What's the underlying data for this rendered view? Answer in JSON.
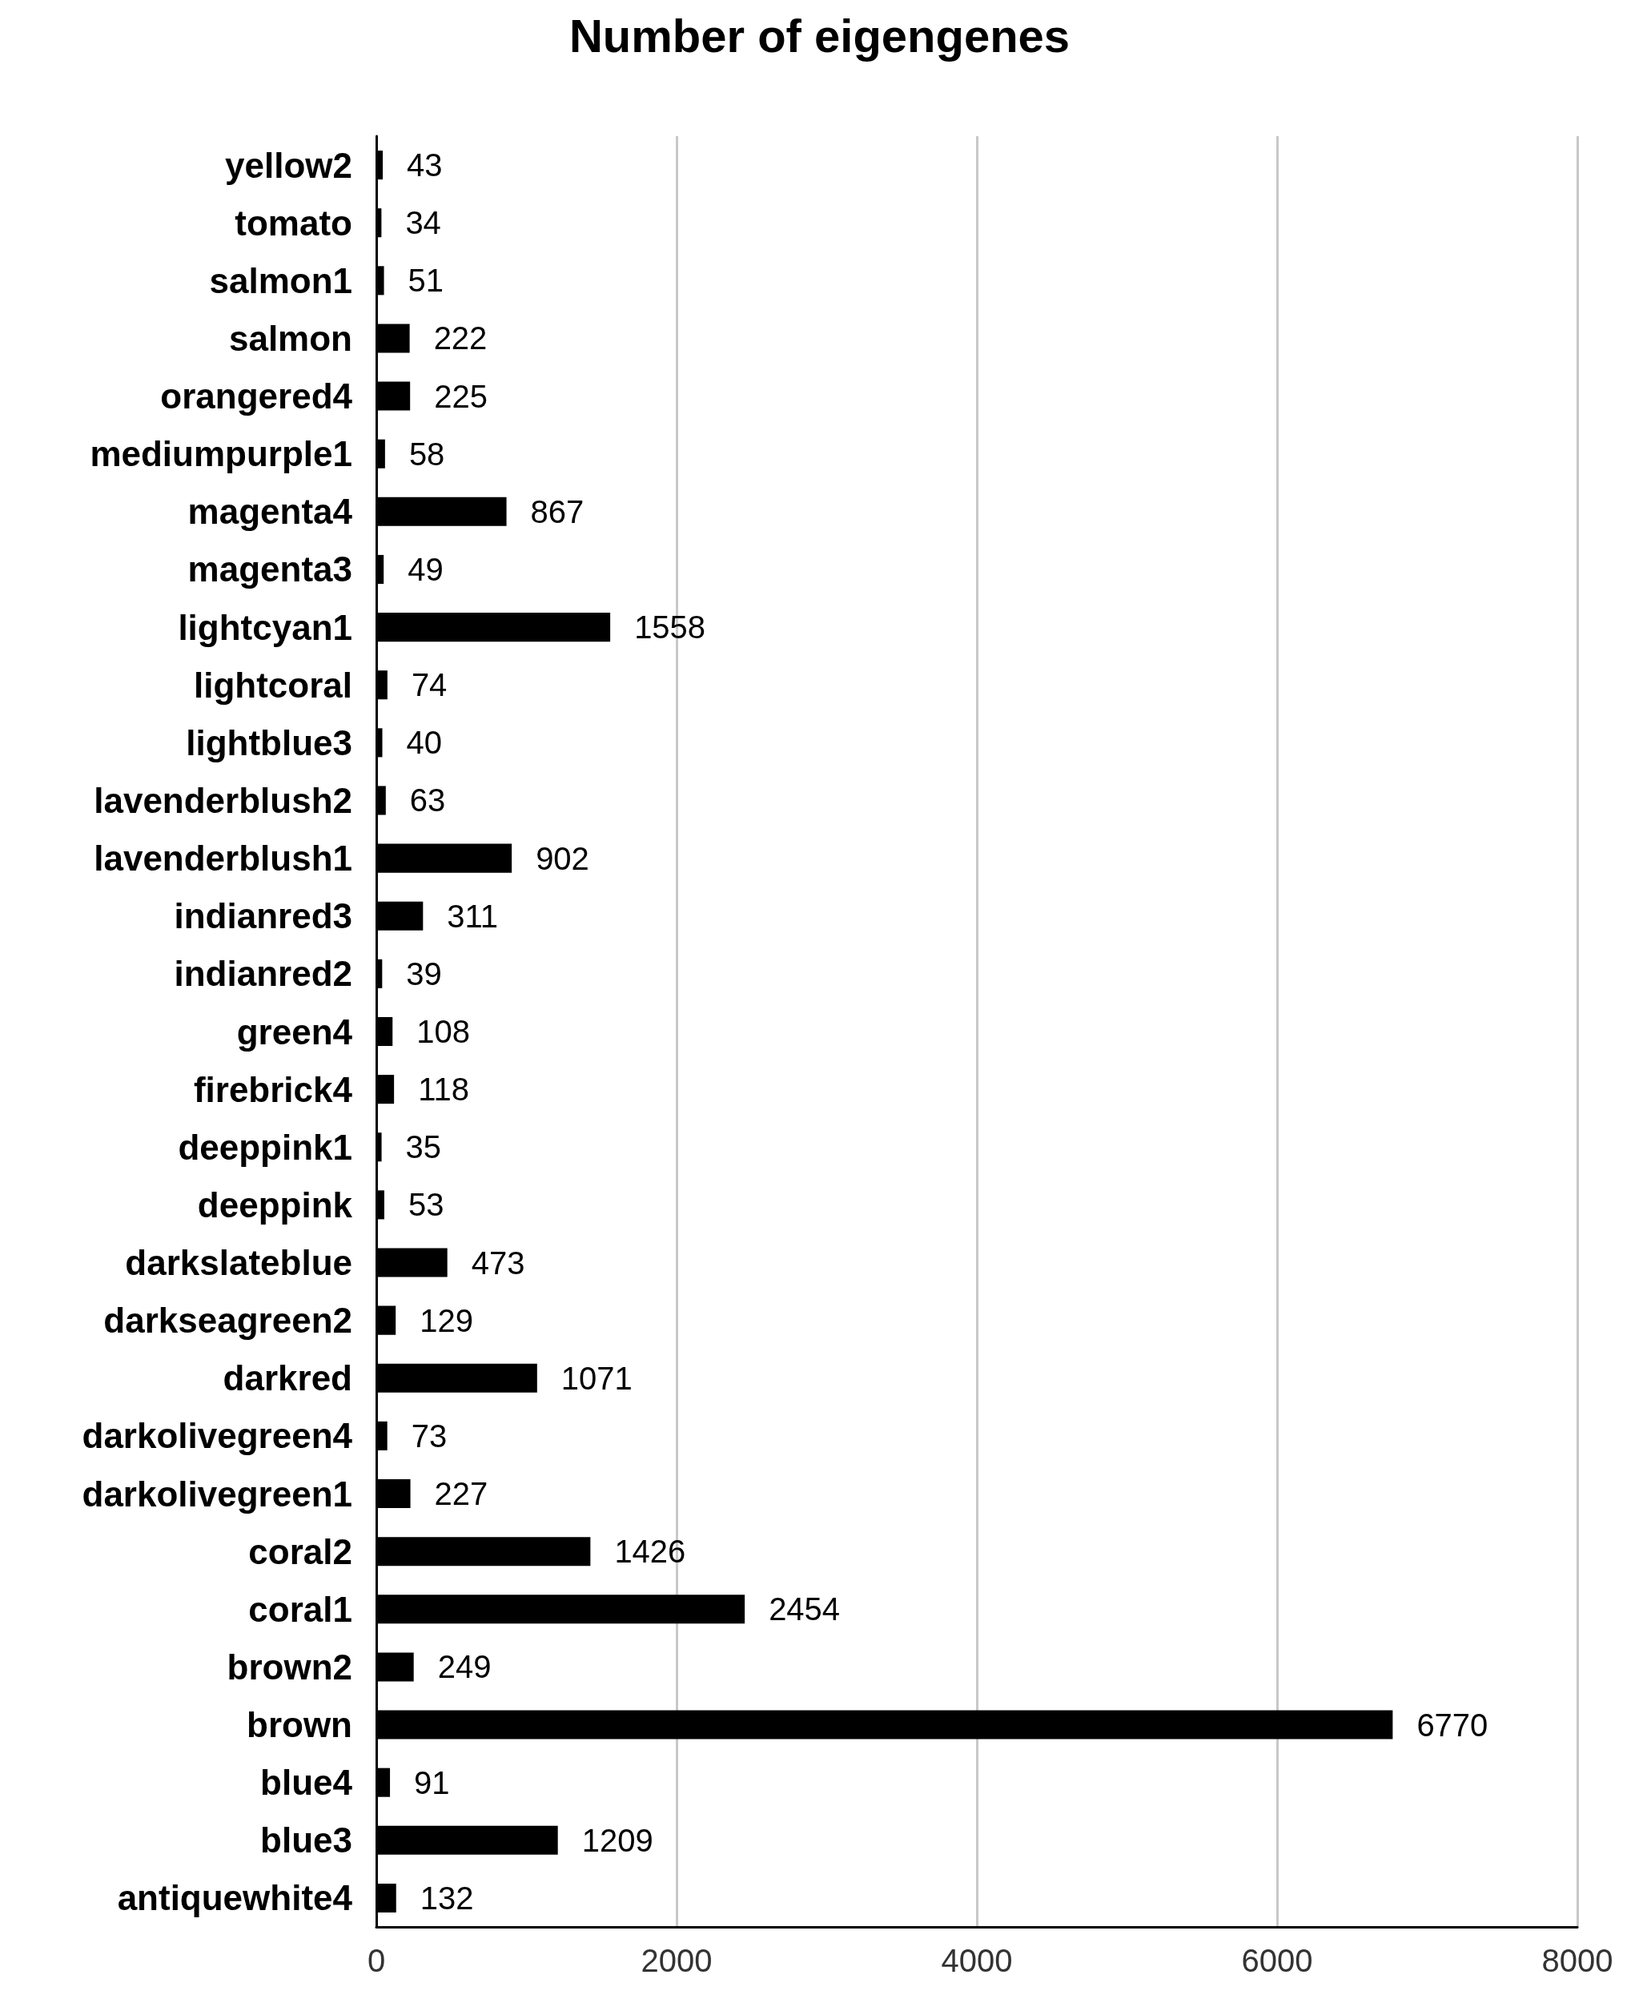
{
  "chart_data": {
    "type": "bar",
    "orientation": "horizontal",
    "title": "Number of eigengenes",
    "categories": [
      "yellow2",
      "tomato",
      "salmon1",
      "salmon",
      "orangered4",
      "mediumpurple1",
      "magenta4",
      "magenta3",
      "lightcyan1",
      "lightcoral",
      "lightblue3",
      "lavenderblush2",
      "lavenderblush1",
      "indianred3",
      "indianred2",
      "green4",
      "firebrick4",
      "deeppink1",
      "deeppink",
      "darkslateblue",
      "darkseagreen2",
      "darkred",
      "darkolivegreen4",
      "darkolivegreen1",
      "coral2",
      "coral1",
      "brown2",
      "brown",
      "blue4",
      "blue3",
      "antiquewhite4"
    ],
    "values": [
      43,
      34,
      51,
      222,
      225,
      58,
      867,
      49,
      1558,
      74,
      40,
      63,
      902,
      311,
      39,
      108,
      118,
      35,
      53,
      473,
      129,
      1071,
      73,
      227,
      1426,
      2454,
      249,
      6770,
      91,
      1209,
      132
    ],
    "color": "#000000",
    "xlim": [
      0,
      8000
    ],
    "xticks": [
      0,
      2000,
      4000,
      6000,
      8000
    ],
    "grid": "x",
    "data_labels": true
  }
}
